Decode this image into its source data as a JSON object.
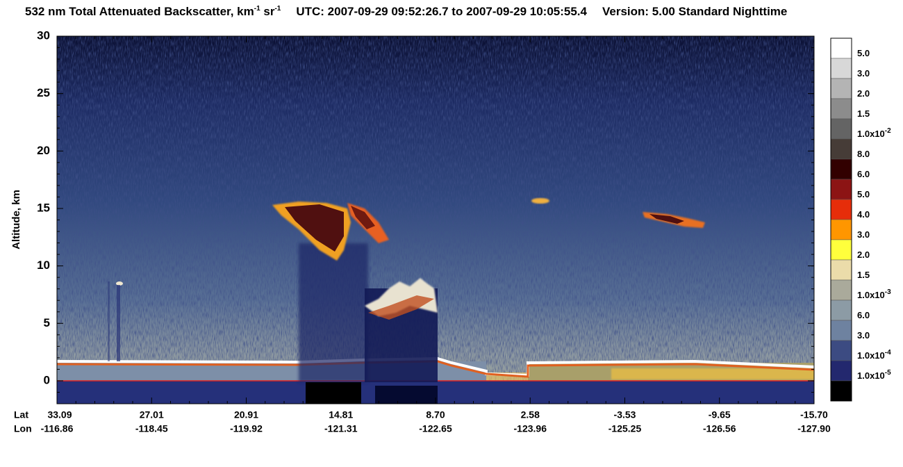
{
  "chart_data": {
    "type": "lidar-curtain",
    "title": {
      "main": "532 nm Total Attenuated Backscatter, km",
      "km_exponent": "-1",
      "sr": " sr",
      "sr_exponent": "-1",
      "utc": "UTC:  2007-09-29 09:52:26.7  to  2007-09-29 10:05:55.4",
      "version": "Version: 5.00  Standard  Nighttime"
    },
    "ylabel": "Altitude, km",
    "ylim": [
      -2,
      30
    ],
    "yticks": [
      0,
      5,
      10,
      15,
      20,
      25,
      30
    ],
    "row_labels": [
      "Lat",
      "Lon"
    ],
    "lat": [
      "33.09",
      "27.01",
      "20.91",
      "14.81",
      "8.70",
      "2.58",
      "-3.53",
      "-9.65",
      "-15.70"
    ],
    "lon": [
      "-116.86",
      "-118.45",
      "-119.92",
      "-121.31",
      "-122.65",
      "-123.96",
      "-125.25",
      "-126.56",
      "-127.90"
    ],
    "colorbar": {
      "colors": [
        "#ffffff",
        "#d8d8d8",
        "#b4b4b4",
        "#8c8c8c",
        "#646464",
        "#463c37",
        "#320000",
        "#8c1414",
        "#e62d0a",
        "#ff9600",
        "#ffff3c",
        "#ebdcaa",
        "#aaaa9b",
        "#8c9ba5",
        "#6e82a0",
        "#3c4b82",
        "#23286e",
        "#000000"
      ],
      "labels": [
        {
          "base": "5.0"
        },
        {
          "base": "3.0"
        },
        {
          "base": "2.0"
        },
        {
          "base": "1.5"
        },
        {
          "base": "1.0x10",
          "exponent": "-2"
        },
        {
          "base": "8.0"
        },
        {
          "base": "6.0"
        },
        {
          "base": "5.0"
        },
        {
          "base": "4.0"
        },
        {
          "base": "3.0"
        },
        {
          "base": "2.0"
        },
        {
          "base": "1.5"
        },
        {
          "base": "1.0x10",
          "exponent": "-3"
        },
        {
          "base": "6.0"
        },
        {
          "base": "3.0"
        },
        {
          "base": "1.0x10",
          "exponent": "-4"
        },
        {
          "base": "1.0x10",
          "exponent": "-5"
        }
      ]
    }
  }
}
